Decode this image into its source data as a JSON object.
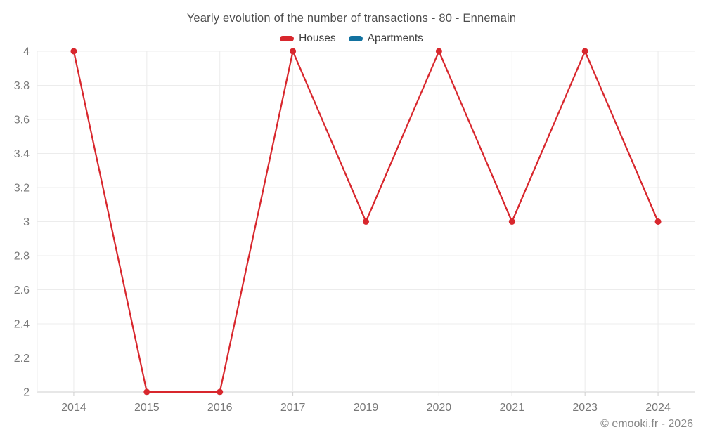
{
  "header": {
    "title": "Yearly evolution of the number of transactions - 80 - Ennemain"
  },
  "legend": {
    "items": [
      {
        "label": "Houses",
        "color": "#d8272d"
      },
      {
        "label": "Apartments",
        "color": "#1272a0"
      }
    ]
  },
  "footer": {
    "text": "© emooki.fr - 2026"
  },
  "colors": {
    "grid": "#ececec",
    "axis": "#cfcfcf",
    "tick_label": "#787878",
    "background": "#ffffff"
  },
  "chart_data": {
    "type": "line",
    "title": "Yearly evolution of the number of transactions - 80 - Ennemain",
    "categories": [
      "2014",
      "2015",
      "2016",
      "2017",
      "2019",
      "2020",
      "2021",
      "2023",
      "2024"
    ],
    "series": [
      {
        "name": "Houses",
        "color": "#d8272d",
        "values": [
          4,
          2,
          2,
          4,
          3,
          4,
          3,
          4,
          3
        ]
      },
      {
        "name": "Apartments",
        "color": "#1272a0",
        "values": []
      }
    ],
    "xlabel": "",
    "ylabel": "",
    "ylim": [
      2,
      4
    ],
    "yticks": [
      2,
      2.2,
      2.4,
      2.6,
      2.8,
      3,
      3.2,
      3.4,
      3.6,
      3.8,
      4
    ],
    "grid": true,
    "legend_position": "top",
    "marker": "circle"
  }
}
